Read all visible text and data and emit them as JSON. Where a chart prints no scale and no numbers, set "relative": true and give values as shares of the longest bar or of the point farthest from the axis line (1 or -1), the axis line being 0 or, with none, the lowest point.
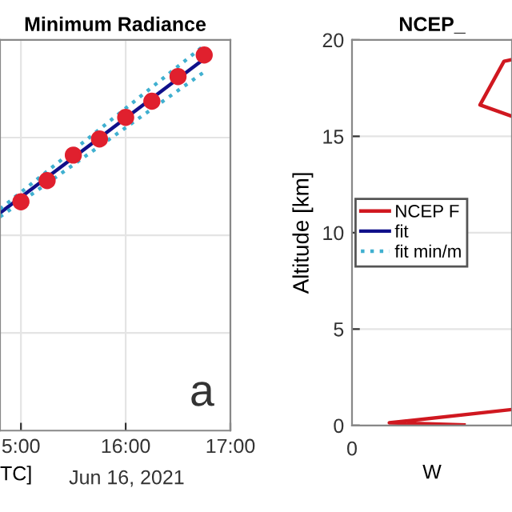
{
  "chart_data": [
    {
      "type": "line",
      "title": "Minimum Radiance",
      "xlabel": "TC]",
      "relative": true,
      "grid": true,
      "xlim": [
        "2021-06-16T14:48",
        "2021-06-16T17:00"
      ],
      "xticks": [
        {
          "value": "2021-06-16T15:00",
          "label": "5:00"
        },
        {
          "value": "2021-06-16T16:00",
          "label": "16:00"
        },
        {
          "value": "2021-06-16T17:00",
          "label": "17:00"
        }
      ],
      "annotations": [
        "Jun 16, 2021",
        "a"
      ],
      "series": [
        {
          "type": "scatter",
          "color": "#e0202e",
          "marker": "circle",
          "x": [
            "2021-06-16T15:00",
            "2021-06-16T15:15",
            "2021-06-16T15:30",
            "2021-06-16T15:45",
            "2021-06-16T16:00",
            "2021-06-16T16:15",
            "2021-06-16T16:30",
            "2021-06-16T16:45"
          ],
          "values": [
            0.594,
            0.649,
            0.715,
            0.757,
            0.813,
            0.855,
            0.919,
            0.975
          ]
        },
        {
          "type": "line",
          "color": "#10108a",
          "line_style": "solid",
          "x": [
            "2021-06-16T14:48",
            "2021-06-16T16:45"
          ],
          "values": [
            0.565,
            0.965
          ]
        },
        {
          "type": "line",
          "color": "#40b0d0",
          "line_style": "dotted",
          "x": [
            "2021-06-16T14:48",
            "2021-06-16T16:45"
          ],
          "values": [
            0.575,
            1.0
          ]
        },
        {
          "type": "line",
          "color": "#40b0d0",
          "line_style": "dotted",
          "x": [
            "2021-06-16T14:48",
            "2021-06-16T16:45"
          ],
          "values": [
            0.555,
            0.931
          ]
        }
      ]
    },
    {
      "type": "line",
      "title": "NCEP_",
      "xlabel": "W",
      "ylabel": "Altitude [km]",
      "grid": true,
      "legend": "left",
      "relative": true,
      "orientation": "horizontal",
      "ylim": [
        0,
        20
      ],
      "yticks": [
        0,
        5,
        10,
        15,
        20
      ],
      "annotations": [
        "0"
      ],
      "series": [
        {
          "name": "NCEP F",
          "color": "#d01820",
          "line_style": "solid",
          "x": [
            0.03,
            0.14,
            0.83,
            null,
            16.04,
            16.63,
            18.89,
            18.98
          ],
          "values": [
            0.7,
            0.233,
            1.0,
            null,
            1.0,
            0.8,
            0.95,
            1.0
          ]
        },
        {
          "name": "fit",
          "color": "#10108a",
          "line_style": "solid"
        },
        {
          "name": "fit min/m",
          "color": "#40b0d0",
          "line_style": "dotted"
        }
      ]
    }
  ]
}
